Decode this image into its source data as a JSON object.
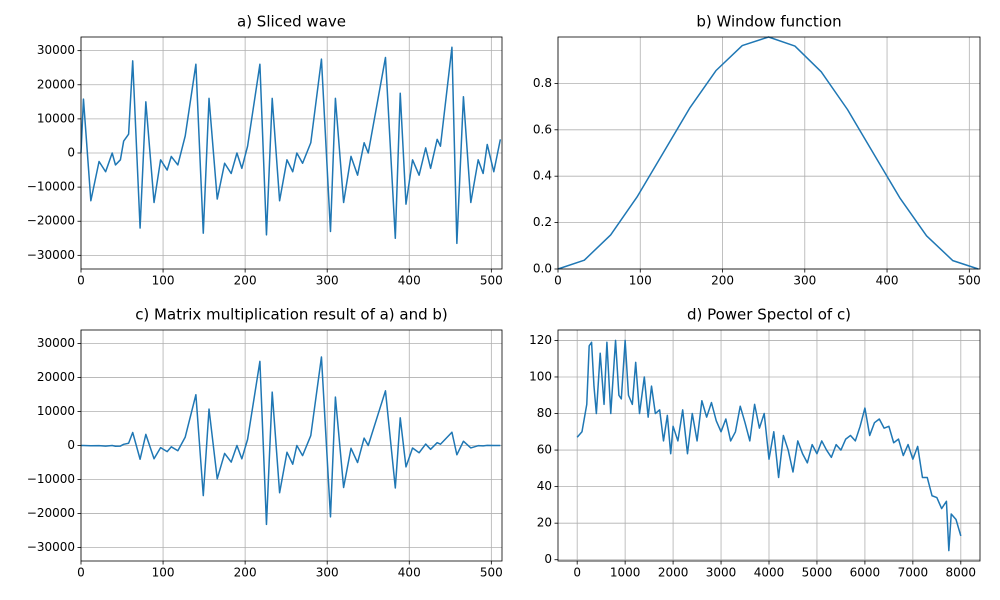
{
  "chart_data": [
    {
      "type": "line",
      "title": "a) Sliced wave",
      "color": "#1f77b4",
      "grid": true,
      "x": [
        0,
        3,
        12,
        22,
        30,
        38,
        42,
        48,
        52,
        58,
        63,
        72,
        79,
        89,
        97,
        105,
        110,
        118,
        127,
        140,
        149,
        156,
        166,
        175,
        183,
        190,
        196,
        203,
        218,
        226,
        233,
        242,
        251,
        258,
        263,
        270,
        280,
        293,
        304,
        310,
        320,
        329,
        337,
        345,
        350,
        371,
        383,
        389,
        396,
        404,
        412,
        420,
        426,
        434,
        438,
        452,
        458,
        466,
        475,
        484,
        490,
        495,
        503,
        511
      ],
      "values": [
        0,
        15800,
        -14000,
        -2500,
        -5500,
        0,
        -3500,
        -2000,
        3500,
        5500,
        27000,
        -22000,
        15000,
        -14500,
        -2000,
        -5000,
        -1000,
        -3500,
        5000,
        26000,
        -23500,
        16000,
        -13500,
        -3000,
        -6000,
        0,
        -4500,
        2000,
        26000,
        -24000,
        16000,
        -14000,
        -2000,
        -5500,
        0,
        -3000,
        3000,
        27500,
        -23000,
        16000,
        -14500,
        -1000,
        -6500,
        3000,
        0,
        28000,
        -25000,
        17500,
        -15000,
        -2000,
        -6500,
        1500,
        -4500,
        4000,
        2000,
        31000,
        -26500,
        16500,
        -14500,
        -2000,
        -6000,
        2500,
        -5500,
        4000
      ],
      "xlim": [
        0,
        513
      ],
      "ylim": [
        -34000,
        34000
      ],
      "xticks": [
        0,
        100,
        200,
        300,
        400,
        500
      ],
      "yticks": [
        {
          "value": -30000,
          "label": "−30000"
        },
        {
          "value": -20000,
          "label": "−20000"
        },
        {
          "value": -10000,
          "label": "−10000"
        },
        0,
        10000,
        20000,
        30000
      ]
    },
    {
      "type": "line",
      "title": "b) Window function",
      "color": "#1f77b4",
      "grid": true,
      "x": [
        0,
        32,
        64,
        96,
        128,
        160,
        192,
        224,
        256,
        288,
        320,
        352,
        384,
        416,
        448,
        480,
        511
      ],
      "values": [
        0,
        0.038,
        0.147,
        0.31,
        0.501,
        0.693,
        0.855,
        0.963,
        1.0,
        0.961,
        0.85,
        0.687,
        0.495,
        0.304,
        0.143,
        0.036,
        0
      ],
      "xlim": [
        0,
        513
      ],
      "ylim": [
        0,
        1.0
      ],
      "xticks": [
        0,
        100,
        200,
        300,
        400,
        500
      ],
      "yticks": [
        {
          "value": 0,
          "label": "0.0"
        },
        {
          "value": 0.2,
          "label": "0.2"
        },
        {
          "value": 0.4,
          "label": "0.4"
        },
        {
          "value": 0.6,
          "label": "0.6"
        },
        {
          "value": 0.8,
          "label": "0.8"
        }
      ]
    },
    {
      "type": "line",
      "title": "c) Matrix multiplication result of a) and b)",
      "color": "#1f77b4",
      "grid": true,
      "x": [
        0,
        3,
        12,
        22,
        30,
        38,
        42,
        48,
        52,
        58,
        63,
        72,
        79,
        89,
        97,
        105,
        110,
        118,
        127,
        140,
        149,
        156,
        166,
        175,
        183,
        190,
        196,
        203,
        218,
        226,
        233,
        242,
        251,
        258,
        263,
        270,
        280,
        293,
        304,
        310,
        320,
        329,
        337,
        345,
        350,
        371,
        383,
        389,
        396,
        404,
        412,
        420,
        426,
        434,
        438,
        452,
        458,
        466,
        475,
        484,
        490,
        495,
        503,
        511
      ],
      "values": [
        0,
        5,
        -76,
        -45,
        -184,
        0,
        -228,
        -170,
        347,
        671,
        3834,
        -4048,
        3270,
        -3915,
        -630,
        -1805,
        -391,
        -1540,
        2475,
        14950,
        -14758,
        10720,
        -9815,
        -2328,
        -4890,
        0,
        -3929,
        1802,
        24752,
        -23232,
        15696,
        -13902,
        -2000,
        -5498,
        0,
        -2976,
        2931,
        26043,
        -21000,
        14256,
        -12369,
        -812,
        -5012,
        2181,
        0,
        16100,
        -12500,
        8138,
        -6300,
        -748,
        -2132,
        425,
        -1125,
        832,
        376,
        3906,
        -2730,
        1254,
        -711,
        -54,
        -96,
        24,
        -13,
        0
      ],
      "xlim": [
        0,
        513
      ],
      "ylim": [
        -34000,
        34000
      ],
      "xticks": [
        0,
        100,
        200,
        300,
        400,
        500
      ],
      "yticks": [
        {
          "value": -30000,
          "label": "−30000"
        },
        {
          "value": -20000,
          "label": "−20000"
        },
        {
          "value": -10000,
          "label": "−10000"
        },
        0,
        10000,
        20000,
        30000
      ]
    },
    {
      "type": "line",
      "title": "d) Power Spectol of c)",
      "color": "#1f77b4",
      "grid": true,
      "x": [
        0,
        100,
        200,
        250,
        300,
        350,
        400,
        480,
        560,
        620,
        700,
        800,
        870,
        920,
        1000,
        1070,
        1150,
        1220,
        1300,
        1400,
        1480,
        1550,
        1630,
        1720,
        1800,
        1880,
        1950,
        2000,
        2100,
        2200,
        2300,
        2400,
        2500,
        2600,
        2700,
        2800,
        2900,
        3000,
        3100,
        3200,
        3300,
        3400,
        3500,
        3600,
        3700,
        3800,
        3900,
        4000,
        4100,
        4200,
        4300,
        4400,
        4500,
        4600,
        4700,
        4800,
        4900,
        5000,
        5100,
        5200,
        5300,
        5400,
        5500,
        5600,
        5700,
        5800,
        5900,
        6000,
        6100,
        6200,
        6300,
        6400,
        6500,
        6600,
        6700,
        6800,
        6900,
        7000,
        7100,
        7200,
        7300,
        7400,
        7500,
        7600,
        7700,
        7750,
        7800,
        7900,
        8000
      ],
      "values": [
        67,
        70,
        85,
        117,
        119,
        95,
        80,
        113,
        85,
        119,
        80,
        120,
        90,
        88,
        120,
        90,
        85,
        108,
        80,
        100,
        78,
        95,
        80,
        82,
        65,
        79,
        58,
        73,
        65,
        82,
        58,
        80,
        65,
        87,
        78,
        86,
        76,
        70,
        77,
        65,
        70,
        84,
        75,
        65,
        85,
        72,
        80,
        55,
        70,
        45,
        68,
        60,
        48,
        65,
        58,
        53,
        63,
        58,
        65,
        60,
        56,
        63,
        60,
        66,
        68,
        65,
        73,
        83,
        68,
        75,
        77,
        72,
        73,
        64,
        66,
        57,
        63,
        55,
        62,
        45,
        45,
        35,
        34,
        28,
        32,
        5,
        25,
        22,
        13
      ],
      "xlim": [
        -400,
        8400
      ],
      "ylim": [
        -0.7,
        125.7
      ],
      "xticks": [
        0,
        1000,
        2000,
        3000,
        4000,
        5000,
        6000,
        7000,
        8000
      ],
      "yticks": [
        0,
        20,
        40,
        60,
        80,
        100,
        120
      ]
    }
  ]
}
